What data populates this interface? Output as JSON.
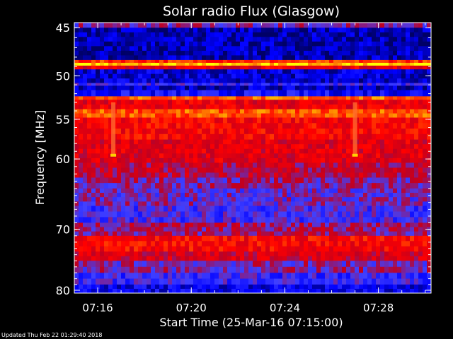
{
  "chart_data": {
    "type": "heatmap",
    "title": "Solar radio Flux (Glasgow)",
    "xlabel": "Start Time (25-Mar-16 07:15:00)",
    "ylabel": "Frequency [MHz]",
    "x_ticks": [
      "07:16",
      "07:20",
      "07:24",
      "07:28"
    ],
    "y_ticks": [
      "45",
      "50",
      "55",
      "60",
      "70",
      "80"
    ],
    "x_range": [
      "07:15:00",
      "07:30:15"
    ],
    "y_range": [
      44.5,
      80.5
    ],
    "y_scale": "log",
    "bands": [
      {
        "from": 44.5,
        "to": 45.0,
        "intensity": 0.4
      },
      {
        "from": 45.0,
        "to": 48.3,
        "intensity": 0.08
      },
      {
        "from": 48.3,
        "to": 48.6,
        "intensity": 0.75
      },
      {
        "from": 48.6,
        "to": 48.9,
        "intensity": 0.97
      },
      {
        "from": 48.9,
        "to": 49.3,
        "intensity": 0.6
      },
      {
        "from": 49.3,
        "to": 50.8,
        "intensity": 0.12
      },
      {
        "from": 50.8,
        "to": 51.1,
        "intensity": 0.3
      },
      {
        "from": 51.1,
        "to": 51.6,
        "intensity": 0.1
      },
      {
        "from": 51.6,
        "to": 52.3,
        "intensity": 0.2
      },
      {
        "from": 52.3,
        "to": 52.7,
        "intensity": 0.82
      },
      {
        "from": 52.7,
        "to": 53.8,
        "intensity": 0.6
      },
      {
        "from": 53.8,
        "to": 54.8,
        "intensity": 0.8
      },
      {
        "from": 54.8,
        "to": 57.5,
        "intensity": 0.65
      },
      {
        "from": 57.5,
        "to": 60.5,
        "intensity": 0.58
      },
      {
        "from": 60.5,
        "to": 62.5,
        "intensity": 0.5
      },
      {
        "from": 62.5,
        "to": 64.0,
        "intensity": 0.42
      },
      {
        "from": 64.0,
        "to": 66.5,
        "intensity": 0.38
      },
      {
        "from": 66.5,
        "to": 69.0,
        "intensity": 0.32
      },
      {
        "from": 69.0,
        "to": 71.0,
        "intensity": 0.45
      },
      {
        "from": 71.0,
        "to": 73.5,
        "intensity": 0.66
      },
      {
        "from": 73.5,
        "to": 75.0,
        "intensity": 0.55
      },
      {
        "from": 75.0,
        "to": 77.0,
        "intensity": 0.4
      },
      {
        "from": 77.0,
        "to": 79.0,
        "intensity": 0.3
      },
      {
        "from": 79.0,
        "to": 80.5,
        "intensity": 0.16
      }
    ],
    "bursts": [
      {
        "time": "07:16:40",
        "from": 53.0,
        "to": 59.6
      },
      {
        "time": "07:27:00",
        "from": 53.0,
        "to": 59.6
      }
    ],
    "colormap": [
      "#000066",
      "#0000ff",
      "#4040ff",
      "#c00020",
      "#ff0000",
      "#ff6000",
      "#ffff00"
    ]
  },
  "status": {
    "updated_text": "Updated Thu Feb 22 01:29:40 2018"
  }
}
